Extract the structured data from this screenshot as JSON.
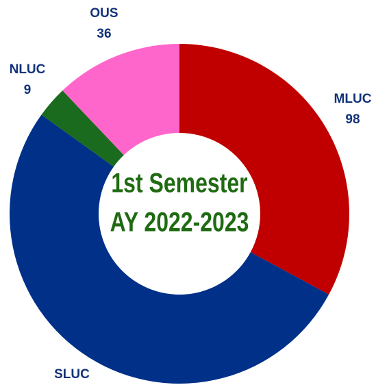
{
  "chart_data": {
    "type": "donut",
    "center_text": [
      "1st Semester",
      "AY 2022-2023"
    ],
    "categories": [
      "MLUC",
      "SLUC",
      "NLUC",
      "OUS"
    ],
    "values": [
      98,
      155,
      9,
      36
    ],
    "value_labels": [
      "98",
      null,
      "9",
      "36"
    ],
    "colors": [
      "#c00000",
      "#013088",
      "#1a6b1e",
      "#ff66cc"
    ]
  }
}
